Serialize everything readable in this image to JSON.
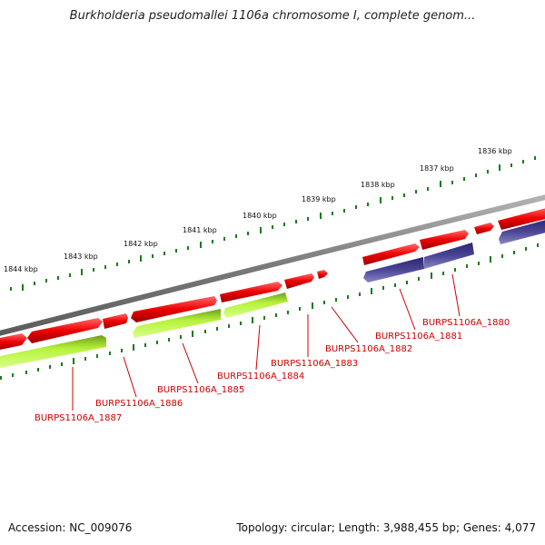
{
  "title": "Burkholderia pseudomallei 1106a chromosome I, complete genom...",
  "footer": {
    "accession": "Accession: NC_009076",
    "summary": "Topology: circular; Length: 3,988,455 bp; Genes: 4,077"
  },
  "colors": {
    "backbone": "#7f7f7f",
    "forward_gene": "#ee0000",
    "reverse_gene_green": "#a8ec2a",
    "reverse_gene_blue": "#45408e",
    "tick": "#1a7a1a",
    "label": "#cc0000"
  },
  "chart_data": {
    "type": "circular-genome-map-arc",
    "kbp_labels": [
      "1844 kbp",
      "1843 kbp",
      "1842 kbp",
      "1841 kbp",
      "1840 kbp",
      "1839 kbp",
      "1838 kbp",
      "1837 kbp",
      "1836 kbp"
    ],
    "gene_labels": [
      "BURPS1106A_1887",
      "BURPS1106A_1886",
      "BURPS1106A_1885",
      "BURPS1106A_1884",
      "BURPS1106A_1883",
      "BURPS1106A_1882",
      "BURPS1106A_1881",
      "BURPS1106A_1880"
    ]
  }
}
